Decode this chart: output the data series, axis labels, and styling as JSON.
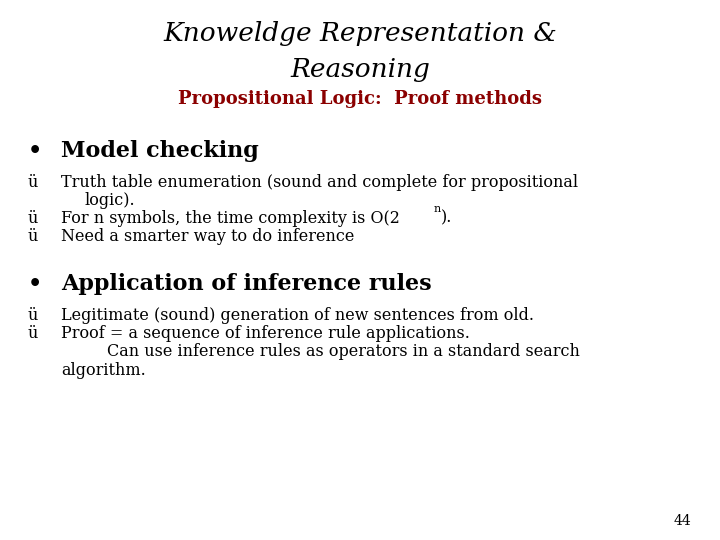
{
  "bg_color": "#ffffff",
  "title_line1": "Knoweldge Representation &",
  "title_line2": "Reasoning",
  "subtitle": "Propositional Logic:  Proof methods",
  "title_color": "#000000",
  "subtitle_color": "#8B0000",
  "bullet1": "Model checking",
  "bullet2": "Application of inference rules",
  "check1a_main": "Truth table enumeration (sound and complete for propositional",
  "check1a_cont": "logic).",
  "check1b_pre": "For n symbols, the time complexity is O(2",
  "check1b_post": ").",
  "check1c": "Need a smarter way to do inference",
  "check2a": "Legitimate (sound) generation of new sentences from old.",
  "check2b": "Proof = a sequence of inference rule applications.",
  "check2c_main": "Can use inference rules as operators in a standard search",
  "check2c_cont": "algorithm.",
  "page_number": "44",
  "font_color": "#000000",
  "checkmark": "ü"
}
